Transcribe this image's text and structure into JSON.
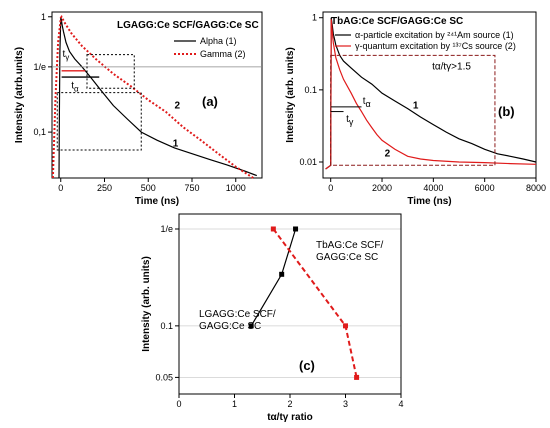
{
  "chart_data": [
    {
      "id": "a",
      "type": "line",
      "panel_label": "(a)",
      "title": "LGAGG:Ce SCF/GAGG:Ce SC",
      "xlabel": "Time (ns)",
      "ylabel": "Intensity (atrb.units)",
      "xlim": [
        -50,
        1150
      ],
      "ylog": true,
      "ylim": [
        0.04,
        1.1
      ],
      "xticks": [
        0,
        250,
        500,
        750,
        1000
      ],
      "xtick_labels": [
        "0",
        "250",
        "500",
        "750",
        "1000"
      ],
      "yticks": [
        1,
        0.367879,
        0.1
      ],
      "ytick_labels": [
        "1",
        "1/e",
        "0,1"
      ],
      "legend_position": "top-right",
      "series": [
        {
          "name": "Alpha (1)",
          "color": "#000000",
          "dash": "solid",
          "curve_label": "1",
          "x": [
            -10,
            -8,
            -5,
            0,
            3,
            8,
            15,
            30,
            50,
            80,
            120,
            170,
            230,
            300,
            380,
            460,
            550,
            650,
            750,
            850,
            950,
            1050,
            1120
          ],
          "y": [
            0.04,
            0.15,
            0.5,
            0.98,
            0.95,
            0.85,
            0.75,
            0.6,
            0.5,
            0.43,
            0.37,
            0.3,
            0.23,
            0.17,
            0.13,
            0.1,
            0.085,
            0.073,
            0.065,
            0.058,
            0.052,
            0.046,
            0.042
          ]
        },
        {
          "name": "Gamma (2)",
          "color": "#e01b1b",
          "dash": "dotted",
          "curve_label": "2",
          "x": [
            -45,
            -30,
            -15,
            0,
            5,
            20,
            60,
            120,
            200,
            300,
            400,
            500,
            600,
            700,
            800,
            900,
            1000,
            1100
          ],
          "y": [
            0.04,
            0.2,
            0.6,
            0.98,
            1.0,
            0.9,
            0.72,
            0.56,
            0.43,
            0.32,
            0.25,
            0.19,
            0.15,
            0.11,
            0.085,
            0.065,
            0.05,
            0.04
          ]
        }
      ],
      "annotations": [
        {
          "text": "t",
          "subscript": "γ",
          "x": 10,
          "y": 0.45
        },
        {
          "text": "t",
          "subscript": "α",
          "x": 60,
          "y": 0.27
        }
      ]
    },
    {
      "id": "b",
      "type": "line",
      "panel_label": "(b)",
      "title": "TbAG:Ce SCF/GAGG:Ce SC",
      "xlabel": "Time (ns)",
      "ylabel": "Intensity (arb. units)",
      "xlim": [
        -300,
        8000
      ],
      "ylog": true,
      "ylim": [
        0.006,
        1.2
      ],
      "xticks": [
        0,
        2000,
        4000,
        6000,
        8000
      ],
      "xtick_labels": [
        "0",
        "2000",
        "4000",
        "6000",
        "8000"
      ],
      "yticks": [
        1,
        0.1,
        0.01
      ],
      "ytick_labels": [
        "1",
        "0.1",
        "0.01"
      ],
      "legend_position": "top-right",
      "ratio_label": "tα/tγ>1.5",
      "series": [
        {
          "name": "α-particle excitation by ²⁴¹Am source (1)",
          "color": "#000000",
          "dash": "solid",
          "curve_label": "1",
          "x": [
            -200,
            0,
            20,
            60,
            100,
            200,
            350,
            500,
            800,
            1200,
            1600,
            2000,
            2500,
            3000,
            3500,
            4000,
            4500,
            5000,
            5500,
            6000,
            6500,
            7000,
            7500,
            8000
          ],
          "y": [
            0.008,
            0.009,
            1.0,
            0.8,
            0.6,
            0.42,
            0.3,
            0.25,
            0.2,
            0.15,
            0.12,
            0.09,
            0.07,
            0.055,
            0.042,
            0.033,
            0.026,
            0.021,
            0.018,
            0.015,
            0.013,
            0.012,
            0.011,
            0.01
          ]
        },
        {
          "name": "γ-quantum excitation by ¹³⁷Cs source (2)",
          "color": "#e01b1b",
          "dash": "solid",
          "curve_label": "2",
          "x": [
            -200,
            0,
            20,
            60,
            100,
            200,
            350,
            500,
            800,
            1000,
            1200,
            1400,
            1600,
            1800,
            2000,
            2500,
            3000,
            3500,
            4000,
            5000,
            6000,
            7000,
            8000
          ],
          "y": [
            0.008,
            0.009,
            0.95,
            0.65,
            0.45,
            0.28,
            0.19,
            0.14,
            0.09,
            0.065,
            0.05,
            0.038,
            0.03,
            0.024,
            0.02,
            0.015,
            0.012,
            0.011,
            0.0105,
            0.01,
            0.0098,
            0.0095,
            0.0093
          ]
        }
      ],
      "annotations": [
        {
          "text": "t",
          "subscript": "α",
          "x": 1250,
          "y": 0.058
        },
        {
          "text": "t",
          "subscript": "γ",
          "x": 600,
          "y": 0.03
        }
      ]
    },
    {
      "id": "c",
      "type": "scatter",
      "panel_label": "(c)",
      "title": "",
      "xlabel": "tα/tγ ratio",
      "ylabel": "Intensity (arb. units)",
      "xlim": [
        0,
        4
      ],
      "ylog": true,
      "ylim": [
        0.04,
        0.45
      ],
      "xticks": [
        0,
        1,
        2,
        3,
        4
      ],
      "xtick_labels": [
        "0",
        "1",
        "2",
        "3",
        "4"
      ],
      "yticks": [
        0.367879,
        0.1,
        0.05
      ],
      "ytick_labels": [
        "1/e",
        "0.1",
        "0.05"
      ],
      "grid": true,
      "series": [
        {
          "name": "LGAGG:Ce SCF/ GAGG:Ce SC",
          "color": "#000000",
          "dash": "solid",
          "marker": "square",
          "x": [
            1.3,
            1.85,
            2.1
          ],
          "y": [
            0.1,
            0.2,
            0.367879
          ]
        },
        {
          "name": "TbAG:Ce SCF/ GAGG:Ce SC",
          "color": "#e01b1b",
          "dash": "dashed",
          "marker": "square",
          "x": [
            1.7,
            3.0,
            3.2
          ],
          "y": [
            0.367879,
            0.1,
            0.05
          ]
        }
      ]
    }
  ]
}
